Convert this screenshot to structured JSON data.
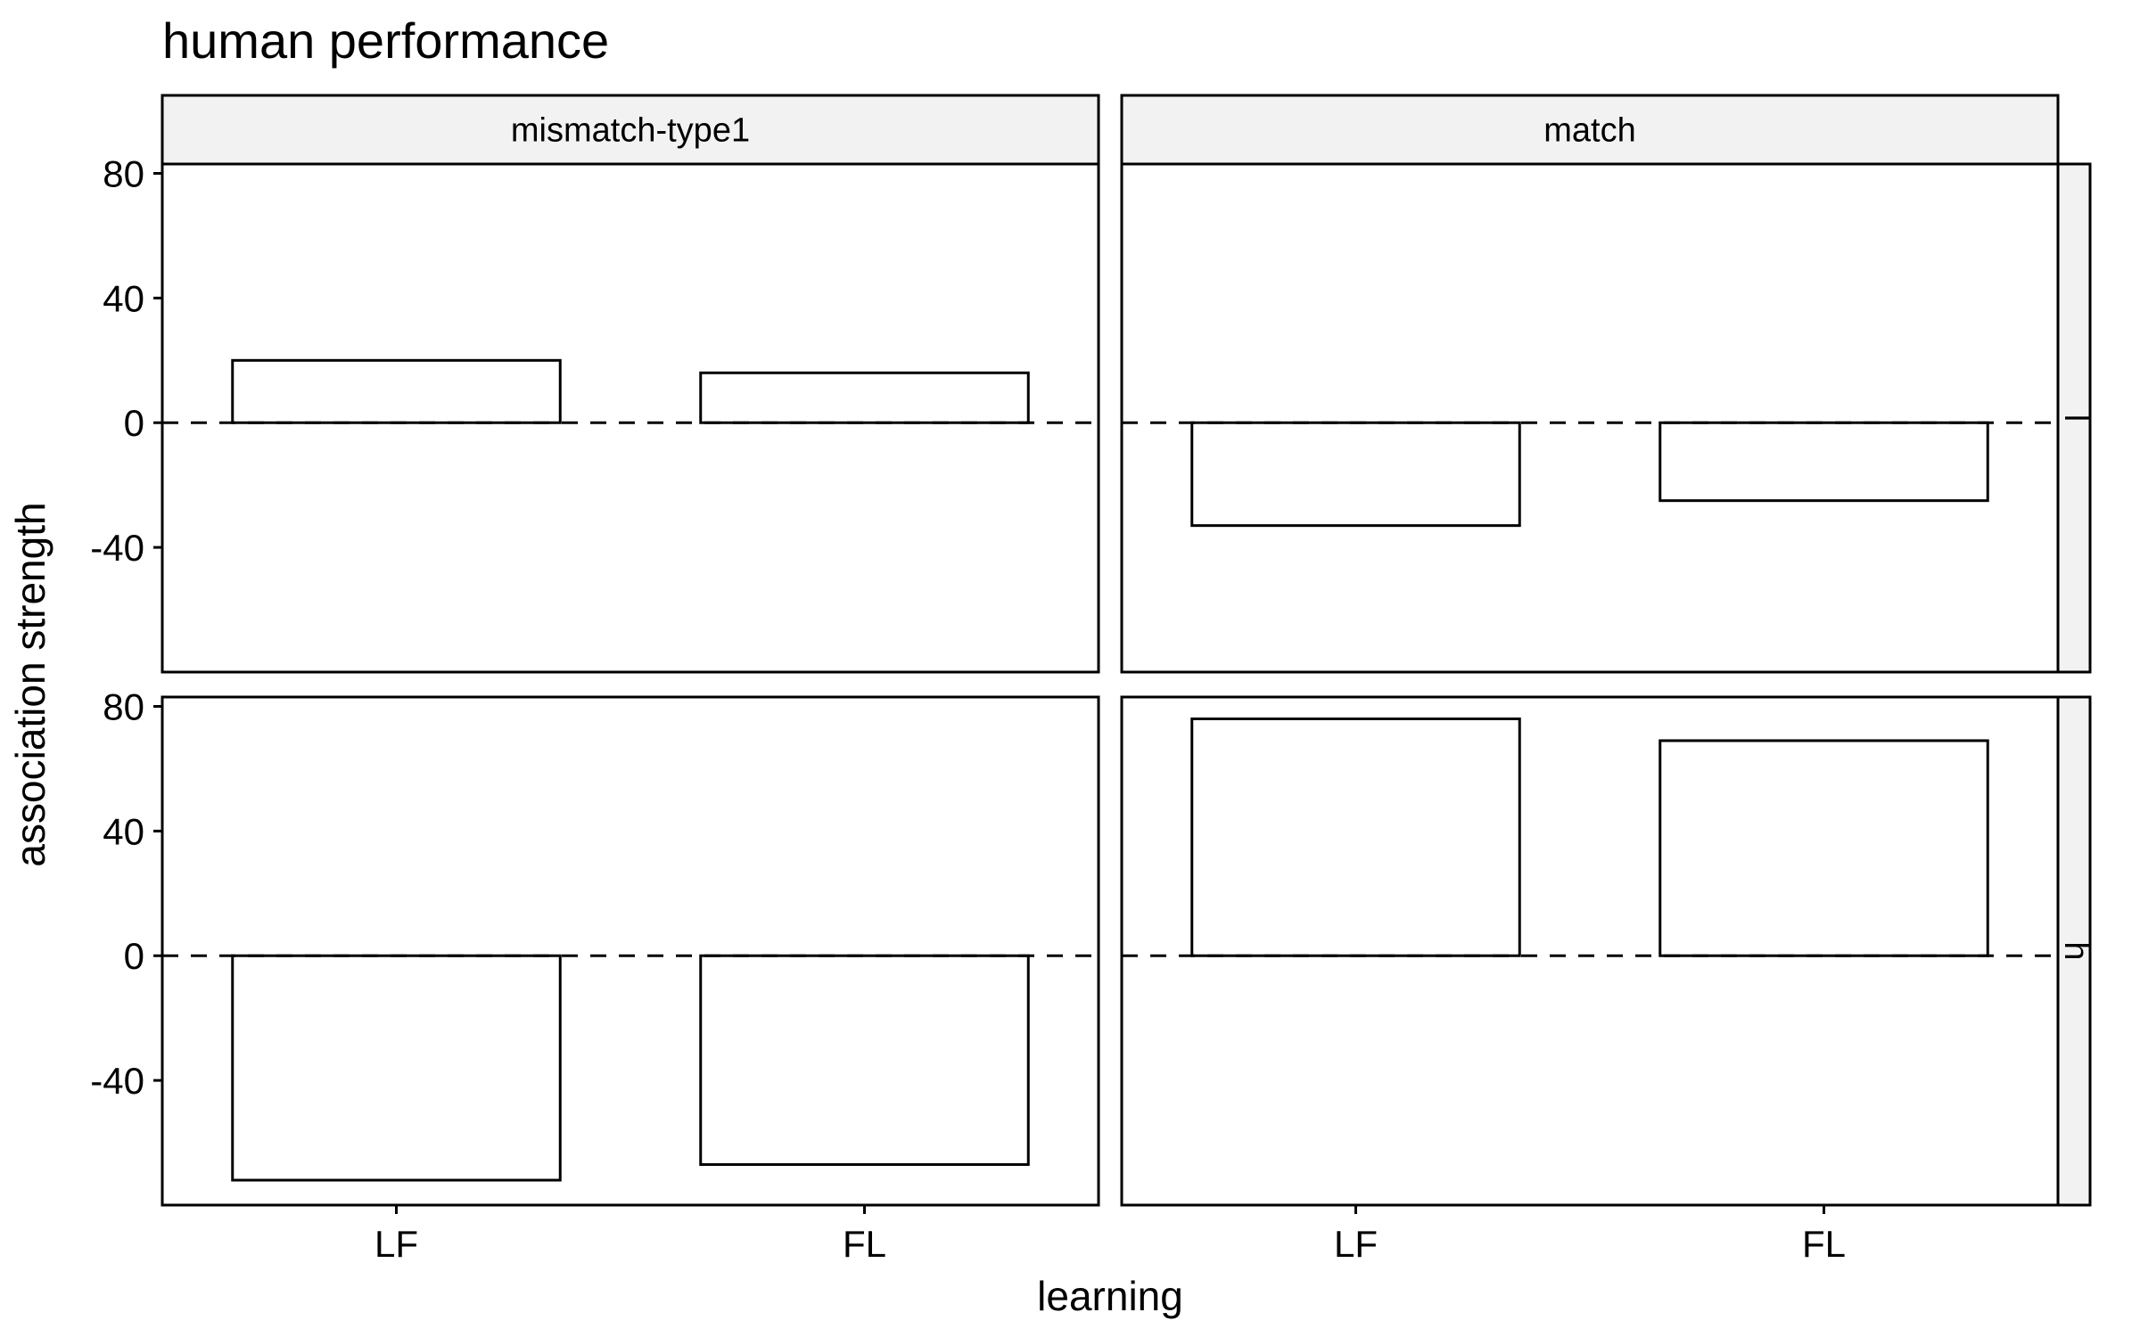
{
  "chart_data": {
    "type": "bar",
    "title": "human performance",
    "xlabel": "learning",
    "ylabel": "association strength",
    "categories": [
      "LF",
      "FL"
    ],
    "yticks": [
      -40,
      0,
      40,
      80
    ],
    "ylim": [
      -80,
      83
    ],
    "reference_line": {
      "y": 0,
      "style": "dashed"
    },
    "facet_columns": [
      "mismatch-type1",
      "match"
    ],
    "facet_rows": [
      "l",
      "h"
    ],
    "panels": [
      {
        "col": "mismatch-type1",
        "row": "l",
        "values": [
          20,
          16
        ]
      },
      {
        "col": "match",
        "row": "l",
        "values": [
          -33,
          -25
        ]
      },
      {
        "col": "mismatch-type1",
        "row": "h",
        "values": [
          -72,
          -67
        ]
      },
      {
        "col": "match",
        "row": "h",
        "values": [
          76,
          69
        ]
      }
    ],
    "grid": false,
    "legend": "none",
    "colors": {
      "bar_fill": "#ffffff",
      "bar_stroke": "#000000",
      "strip_fill": "#f2f2f2"
    }
  }
}
